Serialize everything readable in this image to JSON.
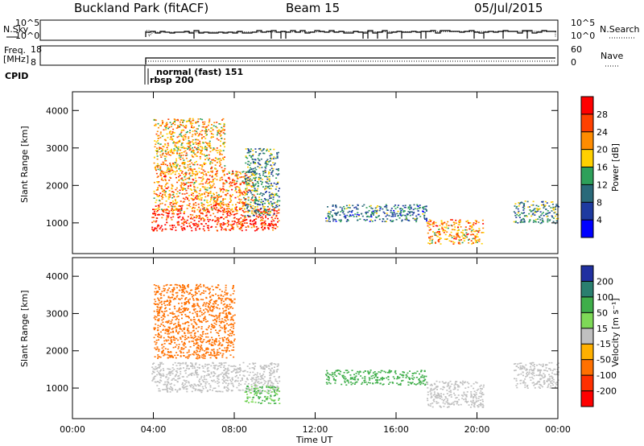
{
  "header": {
    "site": "Buckland Park (fitACF)",
    "beam": "Beam 15",
    "date": "05/Jul/2015"
  },
  "top_panels": {
    "nsky_label": "N.Sky",
    "nsky_ticks": [
      "10^5",
      "10^0"
    ],
    "nsearch_label": "N.Search",
    "nsearch_ticks": [
      "10^5",
      "10^0"
    ],
    "freq_label_1": "Freq.",
    "freq_label_2": "[MHz]",
    "freq_ticks": [
      "18",
      "8"
    ],
    "nave_label": "Nave",
    "nave_ticks": [
      "60",
      "0"
    ],
    "cpid_label": "CPID",
    "cpid_text_1": "normal (fast) 151",
    "cpid_text_2": "rbsp 200"
  },
  "chart_data": [
    {
      "type": "heatmap",
      "name": "power",
      "ylabel": "Slant Range [km]",
      "y_ticks": [
        "4000",
        "3000",
        "2000",
        "1000"
      ],
      "y_tick_values": [
        4000,
        3000,
        2000,
        1000
      ],
      "ylim": [
        180,
        4500
      ],
      "colorbar_label": "Power [dB]",
      "colorbar_ticks": [
        "28",
        "24",
        "20",
        "16",
        "12",
        "8",
        "4"
      ],
      "colorbar_colors": [
        "#ff0000",
        "#ff4000",
        "#ff8c00",
        "#ffd000",
        "#2ea05a",
        "#2a6a7a",
        "#1e3aa0",
        "#0000ff"
      ],
      "scatter_regions": [
        {
          "t0": 3.9,
          "t1": 10.2,
          "r0": 800,
          "r1": 1400,
          "power": 28
        },
        {
          "t0": 4.0,
          "t1": 9.0,
          "r0": 1300,
          "r1": 2400,
          "power": 22
        },
        {
          "t0": 4.0,
          "t1": 7.5,
          "r0": 2400,
          "r1": 3800,
          "power": 20
        },
        {
          "t0": 8.5,
          "t1": 10.2,
          "r0": 1200,
          "r1": 3000,
          "power": 12
        },
        {
          "t0": 12.5,
          "t1": 17.5,
          "r0": 1050,
          "r1": 1500,
          "power": 10
        },
        {
          "t0": 17.5,
          "t1": 20.3,
          "r0": 450,
          "r1": 1100,
          "power": 22
        },
        {
          "t0": 21.8,
          "t1": 24.0,
          "r0": 1000,
          "r1": 1600,
          "power": 12
        }
      ]
    },
    {
      "type": "heatmap",
      "name": "velocity",
      "ylabel": "Slant Range [km]",
      "xlabel": "Time UT",
      "x_ticks": [
        "00:00",
        "04:00",
        "08:00",
        "12:00",
        "16:00",
        "20:00",
        "00:00"
      ],
      "x_tick_values": [
        0,
        4,
        8,
        12,
        16,
        20,
        24
      ],
      "xlim": [
        0,
        24
      ],
      "y_ticks": [
        "4000",
        "3000",
        "2000",
        "1000"
      ],
      "y_tick_values": [
        4000,
        3000,
        2000,
        1000
      ],
      "ylim": [
        180,
        4500
      ],
      "colorbar_label": "Velocity [m s⁻¹]",
      "colorbar_ticks": [
        "200",
        "100",
        "50",
        "15",
        "-15",
        "-50",
        "-100",
        "-200"
      ],
      "colorbar_colors": [
        "#2030a0",
        "#2a7f6f",
        "#3fae4a",
        "#7ed957",
        "#c0c0c0",
        "#ffb000",
        "#ff7000",
        "#ff3000",
        "#ff0000"
      ],
      "scatter_regions": [
        {
          "t0": 3.9,
          "t1": 10.2,
          "r0": 900,
          "r1": 1700,
          "velocity": 0
        },
        {
          "t0": 4.0,
          "t1": 8.0,
          "r0": 1800,
          "r1": 3800,
          "velocity": -60
        },
        {
          "t0": 8.5,
          "t1": 10.2,
          "r0": 600,
          "r1": 1100,
          "velocity": 50
        },
        {
          "t0": 12.5,
          "t1": 17.5,
          "r0": 1100,
          "r1": 1500,
          "velocity": 80
        },
        {
          "t0": 17.5,
          "t1": 20.3,
          "r0": 500,
          "r1": 1200,
          "velocity": 0
        },
        {
          "t0": 21.8,
          "t1": 24.0,
          "r0": 1000,
          "r1": 1700,
          "velocity": 0
        }
      ]
    }
  ]
}
